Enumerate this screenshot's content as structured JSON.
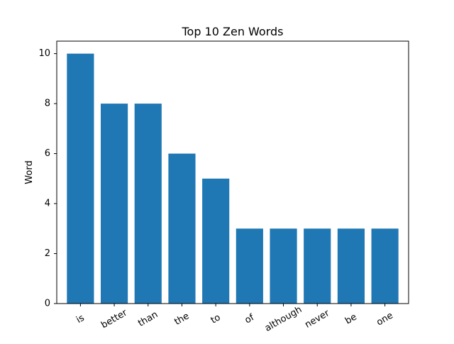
{
  "chart_data": {
    "type": "bar",
    "title": "Top 10 Zen Words",
    "xlabel": "",
    "ylabel": "Word",
    "categories": [
      "is",
      "better",
      "than",
      "the",
      "to",
      "of",
      "although",
      "never",
      "be",
      "one"
    ],
    "values": [
      10,
      8,
      8,
      6,
      5,
      3,
      3,
      3,
      3,
      3
    ],
    "ylim": [
      0,
      10.5
    ],
    "yticks": [
      0,
      2,
      4,
      6,
      8,
      10
    ],
    "grid": false,
    "legend": "none",
    "bar_color": "#1f77b4",
    "xtick_rotation": -30
  }
}
